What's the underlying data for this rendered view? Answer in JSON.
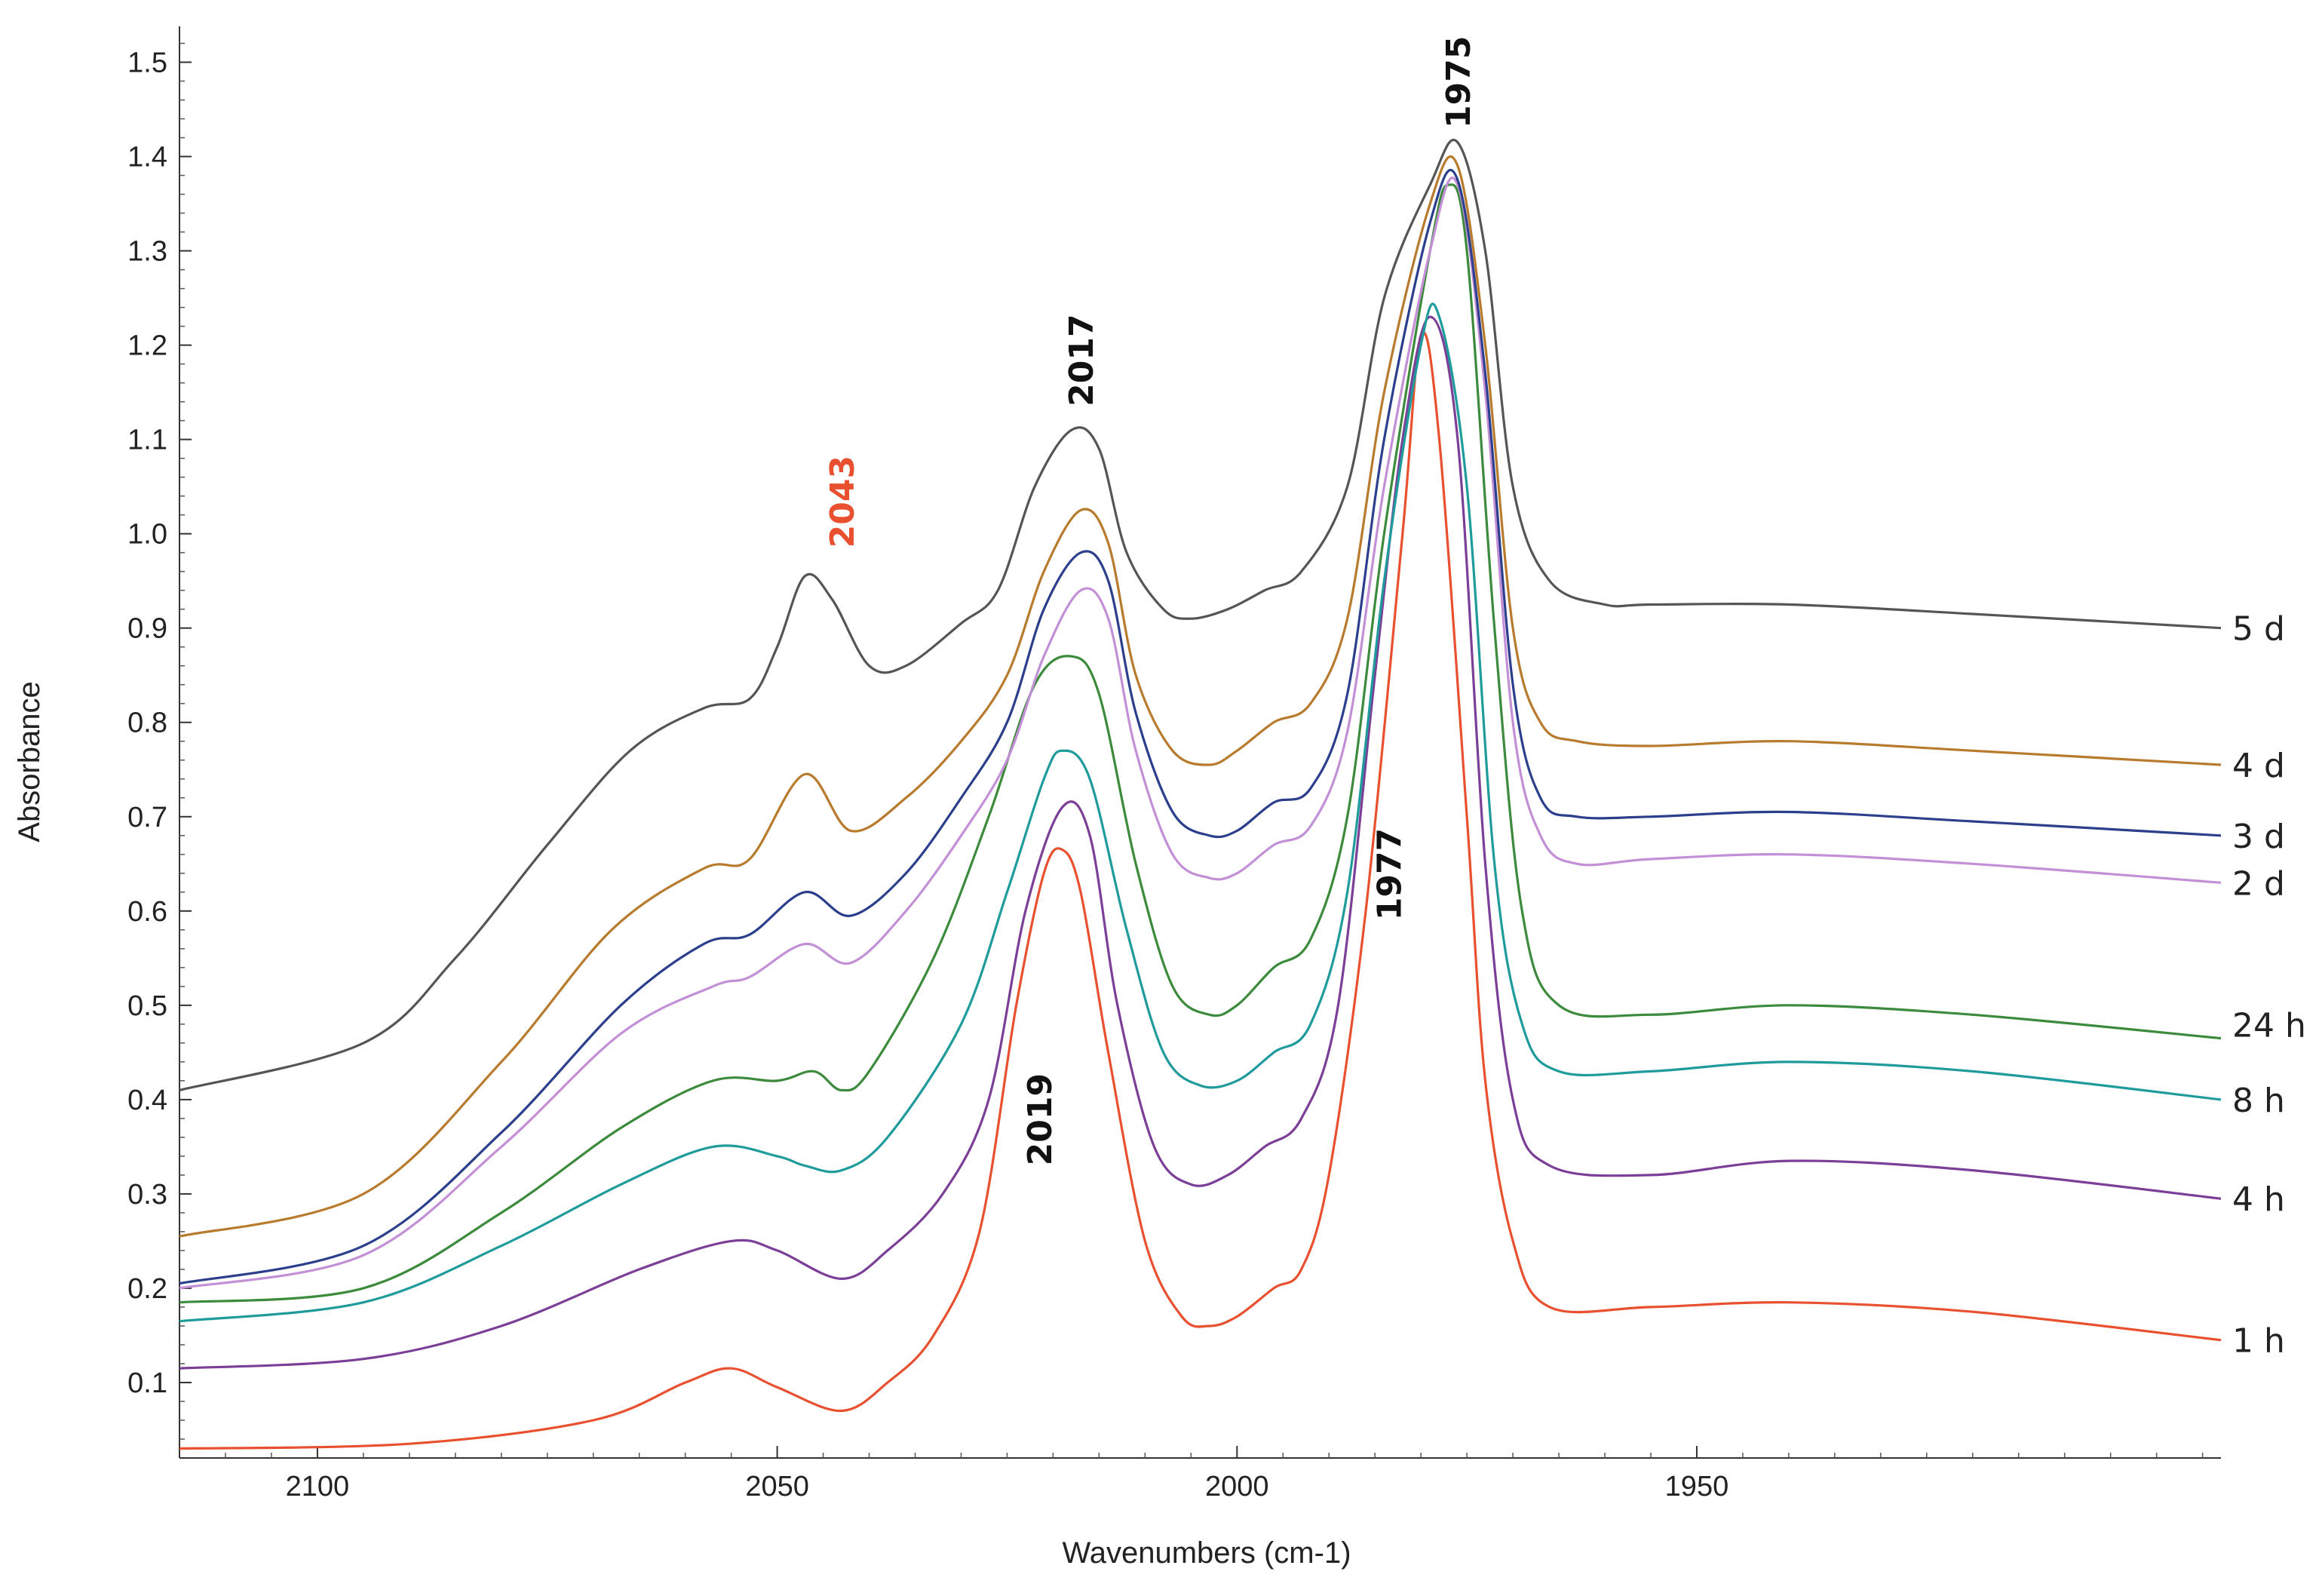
{
  "chart_data": {
    "type": "line",
    "title": "",
    "xlabel": "Wavenumbers (cm-1)",
    "ylabel": "Absorbance",
    "xlim": [
      2115,
      1893
    ],
    "ylim": [
      0.02,
      1.53
    ],
    "xticks": [
      2100,
      2050,
      2000,
      1950
    ],
    "xtick_labels": [
      "2100",
      "2050",
      "2000",
      "1950"
    ],
    "yticks": [
      0.1,
      0.2,
      0.3,
      0.4,
      0.5,
      0.6,
      0.7,
      0.8,
      0.9,
      1.0,
      1.1,
      1.2,
      1.3,
      1.4,
      1.5
    ],
    "ytick_labels": [
      "0.1",
      "0.2",
      "0.3",
      "0.4",
      "0.5",
      "0.6",
      "0.7",
      "0.8",
      "0.9",
      "1.0",
      "1.1",
      "1.2",
      "1.3",
      "1.4",
      "1.5"
    ],
    "grid": false,
    "legend": "right (labels at series ends)",
    "series": [
      {
        "name": "1 h",
        "color": "#e8502f",
        "points": [
          [
            2115,
            0.03
          ],
          [
            2090,
            0.035
          ],
          [
            2070,
            0.06
          ],
          [
            2060,
            0.1
          ],
          [
            2055,
            0.115
          ],
          [
            2050,
            0.095
          ],
          [
            2043,
            0.07
          ],
          [
            2038,
            0.1
          ],
          [
            2033,
            0.15
          ],
          [
            2028,
            0.26
          ],
          [
            2024,
            0.5
          ],
          [
            2021,
            0.64
          ],
          [
            2019,
            0.665
          ],
          [
            2017,
            0.62
          ],
          [
            2014,
            0.45
          ],
          [
            2010,
            0.25
          ],
          [
            2006,
            0.17
          ],
          [
            2003,
            0.16
          ],
          [
            2000,
            0.17
          ],
          [
            1996,
            0.2
          ],
          [
            1993,
            0.22
          ],
          [
            1990,
            0.32
          ],
          [
            1986,
            0.6
          ],
          [
            1982,
            1.0
          ],
          [
            1980,
            1.21
          ],
          [
            1978,
            1.1
          ],
          [
            1975,
            0.7
          ],
          [
            1973,
            0.42
          ],
          [
            1970,
            0.25
          ],
          [
            1966,
            0.18
          ],
          [
            1955,
            0.18
          ],
          [
            1940,
            0.185
          ],
          [
            1920,
            0.175
          ],
          [
            1893,
            0.145
          ]
        ]
      },
      {
        "name": "4 h",
        "color": "#7b3f98",
        "points": [
          [
            2115,
            0.115
          ],
          [
            2095,
            0.125
          ],
          [
            2080,
            0.16
          ],
          [
            2065,
            0.22
          ],
          [
            2055,
            0.25
          ],
          [
            2050,
            0.24
          ],
          [
            2043,
            0.21
          ],
          [
            2038,
            0.24
          ],
          [
            2032,
            0.3
          ],
          [
            2027,
            0.4
          ],
          [
            2023,
            0.6
          ],
          [
            2019,
            0.71
          ],
          [
            2016,
            0.68
          ],
          [
            2013,
            0.5
          ],
          [
            2009,
            0.35
          ],
          [
            2005,
            0.31
          ],
          [
            2001,
            0.32
          ],
          [
            1997,
            0.35
          ],
          [
            1993,
            0.38
          ],
          [
            1989,
            0.5
          ],
          [
            1985,
            0.85
          ],
          [
            1982,
            1.1
          ],
          [
            1979,
            1.23
          ],
          [
            1976,
            1.1
          ],
          [
            1973,
            0.65
          ],
          [
            1970,
            0.4
          ],
          [
            1966,
            0.33
          ],
          [
            1955,
            0.32
          ],
          [
            1940,
            0.335
          ],
          [
            1920,
            0.325
          ],
          [
            1893,
            0.295
          ]
        ]
      },
      {
        "name": "8 h",
        "color": "#1f9b9b",
        "points": [
          [
            2115,
            0.165
          ],
          [
            2095,
            0.185
          ],
          [
            2080,
            0.245
          ],
          [
            2067,
            0.31
          ],
          [
            2057,
            0.35
          ],
          [
            2050,
            0.34
          ],
          [
            2047,
            0.33
          ],
          [
            2043,
            0.325
          ],
          [
            2038,
            0.36
          ],
          [
            2030,
            0.48
          ],
          [
            2025,
            0.62
          ],
          [
            2021,
            0.74
          ],
          [
            2019,
            0.77
          ],
          [
            2016,
            0.74
          ],
          [
            2012,
            0.58
          ],
          [
            2008,
            0.45
          ],
          [
            2004,
            0.415
          ],
          [
            2000,
            0.42
          ],
          [
            1996,
            0.45
          ],
          [
            1992,
            0.48
          ],
          [
            1988,
            0.62
          ],
          [
            1984,
            0.95
          ],
          [
            1980,
            1.2
          ],
          [
            1978,
            1.23
          ],
          [
            1975,
            1.05
          ],
          [
            1972,
            0.65
          ],
          [
            1969,
            0.48
          ],
          [
            1965,
            0.43
          ],
          [
            1955,
            0.43
          ],
          [
            1940,
            0.44
          ],
          [
            1920,
            0.43
          ],
          [
            1893,
            0.4
          ]
        ]
      },
      {
        "name": "24 h",
        "color": "#3c8a3c",
        "points": [
          [
            2115,
            0.185
          ],
          [
            2095,
            0.2
          ],
          [
            2080,
            0.28
          ],
          [
            2067,
            0.37
          ],
          [
            2057,
            0.42
          ],
          [
            2050,
            0.42
          ],
          [
            2046,
            0.43
          ],
          [
            2043,
            0.41
          ],
          [
            2040,
            0.43
          ],
          [
            2033,
            0.55
          ],
          [
            2027,
            0.7
          ],
          [
            2022,
            0.84
          ],
          [
            2018,
            0.87
          ],
          [
            2015,
            0.83
          ],
          [
            2011,
            0.65
          ],
          [
            2007,
            0.52
          ],
          [
            2003,
            0.49
          ],
          [
            2000,
            0.5
          ],
          [
            1996,
            0.54
          ],
          [
            1992,
            0.57
          ],
          [
            1988,
            0.7
          ],
          [
            1984,
            1.0
          ],
          [
            1979,
            1.3
          ],
          [
            1977,
            1.37
          ],
          [
            1975,
            1.3
          ],
          [
            1972,
            0.9
          ],
          [
            1969,
            0.6
          ],
          [
            1965,
            0.5
          ],
          [
            1955,
            0.49
          ],
          [
            1940,
            0.5
          ],
          [
            1920,
            0.49
          ],
          [
            1893,
            0.465
          ]
        ]
      },
      {
        "name": "2 d",
        "color": "#c38fd6",
        "points": [
          [
            2115,
            0.2
          ],
          [
            2095,
            0.235
          ],
          [
            2080,
            0.35
          ],
          [
            2067,
            0.47
          ],
          [
            2057,
            0.52
          ],
          [
            2053,
            0.53
          ],
          [
            2047,
            0.565
          ],
          [
            2042,
            0.545
          ],
          [
            2036,
            0.6
          ],
          [
            2030,
            0.68
          ],
          [
            2025,
            0.76
          ],
          [
            2021,
            0.87
          ],
          [
            2017,
            0.94
          ],
          [
            2014,
            0.91
          ],
          [
            2011,
            0.77
          ],
          [
            2007,
            0.66
          ],
          [
            2003,
            0.635
          ],
          [
            2000,
            0.64
          ],
          [
            1996,
            0.67
          ],
          [
            1992,
            0.69
          ],
          [
            1988,
            0.79
          ],
          [
            1984,
            1.05
          ],
          [
            1979,
            1.3
          ],
          [
            1976,
            1.37
          ],
          [
            1973,
            1.15
          ],
          [
            1970,
            0.8
          ],
          [
            1967,
            0.68
          ],
          [
            1963,
            0.65
          ],
          [
            1955,
            0.655
          ],
          [
            1940,
            0.66
          ],
          [
            1920,
            0.65
          ],
          [
            1893,
            0.63
          ]
        ]
      },
      {
        "name": "3 d",
        "color": "#2b3f8c",
        "points": [
          [
            2115,
            0.205
          ],
          [
            2095,
            0.245
          ],
          [
            2080,
            0.365
          ],
          [
            2067,
            0.5
          ],
          [
            2058,
            0.565
          ],
          [
            2053,
            0.575
          ],
          [
            2047,
            0.62
          ],
          [
            2042,
            0.595
          ],
          [
            2036,
            0.64
          ],
          [
            2030,
            0.72
          ],
          [
            2025,
            0.8
          ],
          [
            2021,
            0.92
          ],
          [
            2017,
            0.98
          ],
          [
            2014,
            0.95
          ],
          [
            2011,
            0.81
          ],
          [
            2007,
            0.705
          ],
          [
            2003,
            0.68
          ],
          [
            2000,
            0.685
          ],
          [
            1996,
            0.715
          ],
          [
            1992,
            0.73
          ],
          [
            1988,
            0.83
          ],
          [
            1984,
            1.1
          ],
          [
            1979,
            1.33
          ],
          [
            1976,
            1.375
          ],
          [
            1973,
            1.17
          ],
          [
            1970,
            0.84
          ],
          [
            1967,
            0.72
          ],
          [
            1963,
            0.7
          ],
          [
            1955,
            0.7
          ],
          [
            1940,
            0.705
          ],
          [
            1920,
            0.695
          ],
          [
            1893,
            0.68
          ]
        ]
      },
      {
        "name": "4 d",
        "color": "#b87b2e",
        "points": [
          [
            2115,
            0.255
          ],
          [
            2095,
            0.3
          ],
          [
            2080,
            0.44
          ],
          [
            2068,
            0.58
          ],
          [
            2058,
            0.645
          ],
          [
            2053,
            0.655
          ],
          [
            2047,
            0.745
          ],
          [
            2042,
            0.685
          ],
          [
            2036,
            0.72
          ],
          [
            2030,
            0.78
          ],
          [
            2025,
            0.85
          ],
          [
            2021,
            0.96
          ],
          [
            2017,
            1.025
          ],
          [
            2014,
            0.99
          ],
          [
            2011,
            0.85
          ],
          [
            2007,
            0.77
          ],
          [
            2003,
            0.755
          ],
          [
            2000,
            0.77
          ],
          [
            1996,
            0.8
          ],
          [
            1992,
            0.82
          ],
          [
            1988,
            0.91
          ],
          [
            1984,
            1.15
          ],
          [
            1979,
            1.35
          ],
          [
            1976,
            1.39
          ],
          [
            1973,
            1.2
          ],
          [
            1970,
            0.9
          ],
          [
            1967,
            0.8
          ],
          [
            1963,
            0.78
          ],
          [
            1955,
            0.775
          ],
          [
            1940,
            0.78
          ],
          [
            1920,
            0.77
          ],
          [
            1893,
            0.755
          ]
        ]
      },
      {
        "name": "5 d",
        "color": "#555555",
        "points": [
          [
            2115,
            0.41
          ],
          [
            2095,
            0.46
          ],
          [
            2085,
            0.55
          ],
          [
            2075,
            0.67
          ],
          [
            2066,
            0.77
          ],
          [
            2058,
            0.815
          ],
          [
            2053,
            0.825
          ],
          [
            2050,
            0.88
          ],
          [
            2047,
            0.955
          ],
          [
            2044,
            0.93
          ],
          [
            2040,
            0.86
          ],
          [
            2036,
            0.86
          ],
          [
            2030,
            0.905
          ],
          [
            2026,
            0.94
          ],
          [
            2022,
            1.05
          ],
          [
            2018,
            1.11
          ],
          [
            2015,
            1.09
          ],
          [
            2012,
            0.98
          ],
          [
            2008,
            0.92
          ],
          [
            2005,
            0.91
          ],
          [
            2001,
            0.92
          ],
          [
            1997,
            0.94
          ],
          [
            1993,
            0.96
          ],
          [
            1988,
            1.05
          ],
          [
            1984,
            1.25
          ],
          [
            1979,
            1.37
          ],
          [
            1976,
            1.415
          ],
          [
            1973,
            1.3
          ],
          [
            1970,
            1.05
          ],
          [
            1966,
            0.95
          ],
          [
            1960,
            0.925
          ],
          [
            1955,
            0.925
          ],
          [
            1940,
            0.925
          ],
          [
            1920,
            0.915
          ],
          [
            1893,
            0.9
          ]
        ]
      }
    ],
    "annotations": [
      {
        "text": "2043",
        "x": 2043,
        "y": 0.985,
        "rotation": -90,
        "color": "#e8502f"
      },
      {
        "text": "2017",
        "x": 2017,
        "y": 1.135,
        "rotation": -90,
        "color": "#111111"
      },
      {
        "text": "1975",
        "x": 1976,
        "y": 1.43,
        "rotation": -90,
        "color": "#111111"
      },
      {
        "text": "2019",
        "x": 2021.5,
        "y": 0.33,
        "rotation": -90,
        "color": "#111111"
      },
      {
        "text": "1977",
        "x": 1983.5,
        "y": 0.59,
        "rotation": -90,
        "color": "#111111"
      }
    ]
  }
}
